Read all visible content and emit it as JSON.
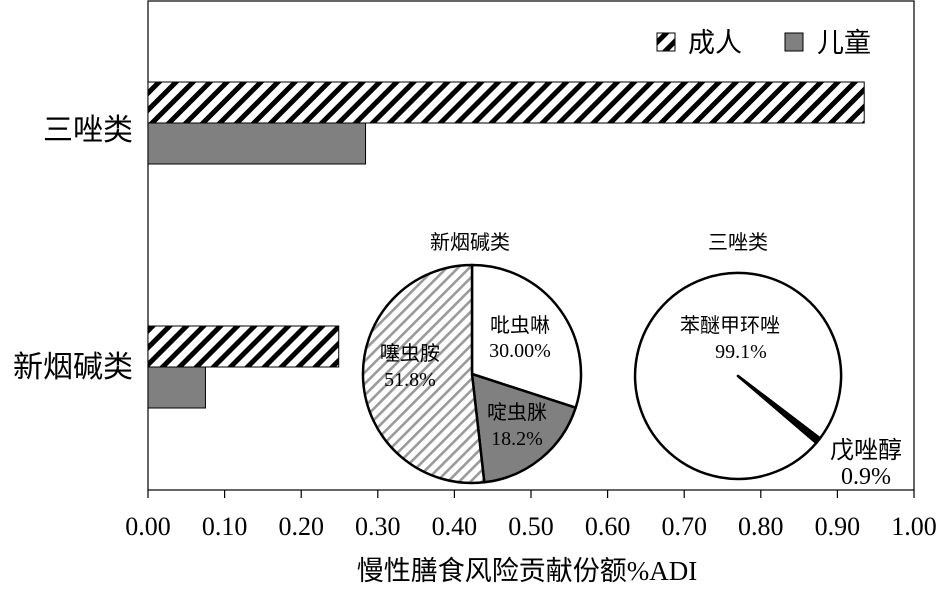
{
  "chart_data": {
    "type": "bar",
    "orientation": "horizontal",
    "categories": [
      "三唑类",
      "新烟碱类"
    ],
    "series": [
      {
        "name": "成人",
        "values": [
          0.935,
          0.249
        ],
        "pattern": "diagonal-hatch",
        "color": "#000000"
      },
      {
        "name": "儿童",
        "values": [
          0.284,
          0.075
        ],
        "pattern": "solid",
        "color": "#808080"
      }
    ],
    "xlabel": "慢性膳食风险贡献份额%ADI",
    "ylabel": "",
    "xlim": [
      0,
      1.0
    ],
    "xticks": [
      "0.00",
      "0.10",
      "0.20",
      "0.30",
      "0.40",
      "0.50",
      "0.60",
      "0.70",
      "0.80",
      "0.90",
      "1.00"
    ],
    "legend_position": "top-right",
    "grid": false,
    "insets": [
      {
        "type": "pie",
        "title": "新烟碱类",
        "slices": [
          {
            "label": "吡虫啉",
            "pct_label": "30.00%",
            "value": 30.0,
            "fill": "#ffffff"
          },
          {
            "label": "啶虫脒",
            "pct_label": "18.2%",
            "value": 18.2,
            "fill": "#808080"
          },
          {
            "label": "噻虫胺",
            "pct_label": "51.8%",
            "value": 51.8,
            "fill": "light-diagonal-hatch"
          }
        ]
      },
      {
        "type": "pie",
        "title": "三唑类",
        "slices": [
          {
            "label": "苯醚甲环唑",
            "pct_label": "99.1%",
            "value": 99.1,
            "fill": "#ffffff"
          },
          {
            "label": "戊唑醇",
            "pct_label": "0.9%",
            "value": 0.9,
            "fill": "#000000"
          }
        ]
      }
    ]
  }
}
